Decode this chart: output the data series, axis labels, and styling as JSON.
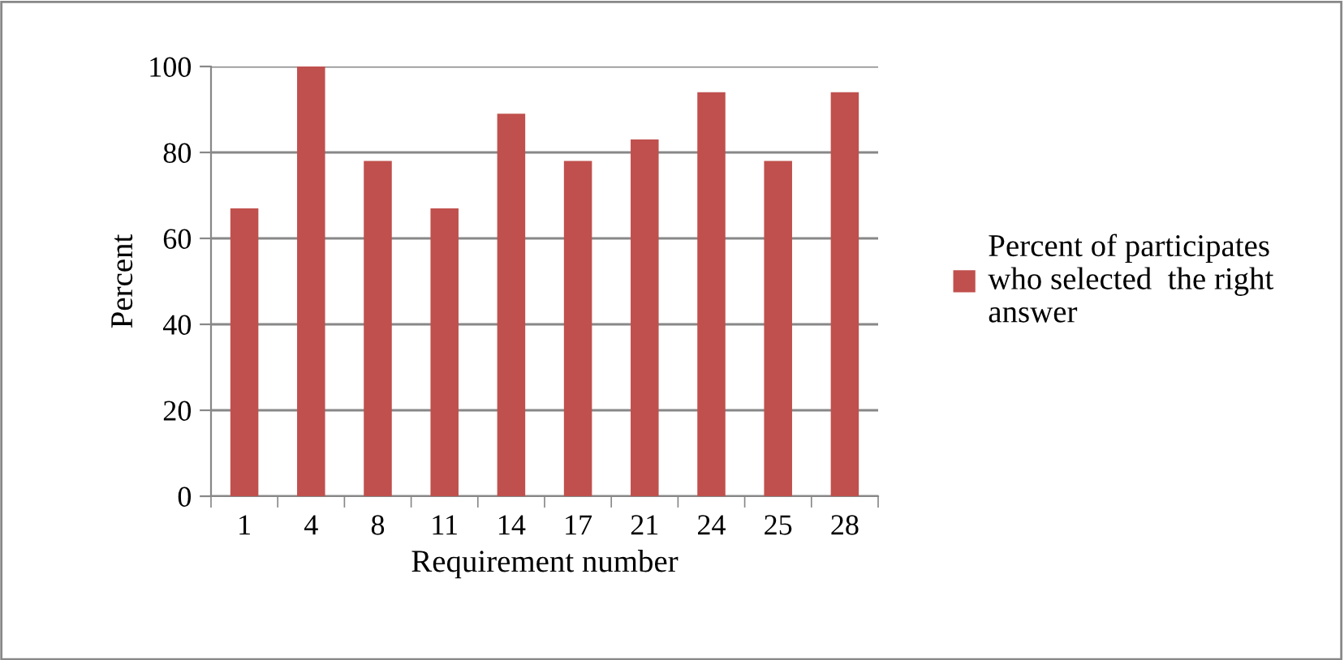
{
  "chart_data": {
    "type": "bar",
    "xlabel": "Requirement number",
    "ylabel": "Percent",
    "categories": [
      "1",
      "4",
      "8",
      "11",
      "14",
      "17",
      "21",
      "24",
      "25",
      "28"
    ],
    "series": [
      {
        "name": "Percent of participates\nwho selected  the right\nanswer",
        "color": "#c0504d",
        "values": [
          67,
          100,
          78,
          67,
          89,
          78,
          83,
          94,
          78,
          94
        ]
      }
    ],
    "ylim": [
      0,
      100
    ],
    "yticks": [
      0,
      20,
      40,
      60,
      80,
      100
    ],
    "grid": "y",
    "legend": "right"
  }
}
